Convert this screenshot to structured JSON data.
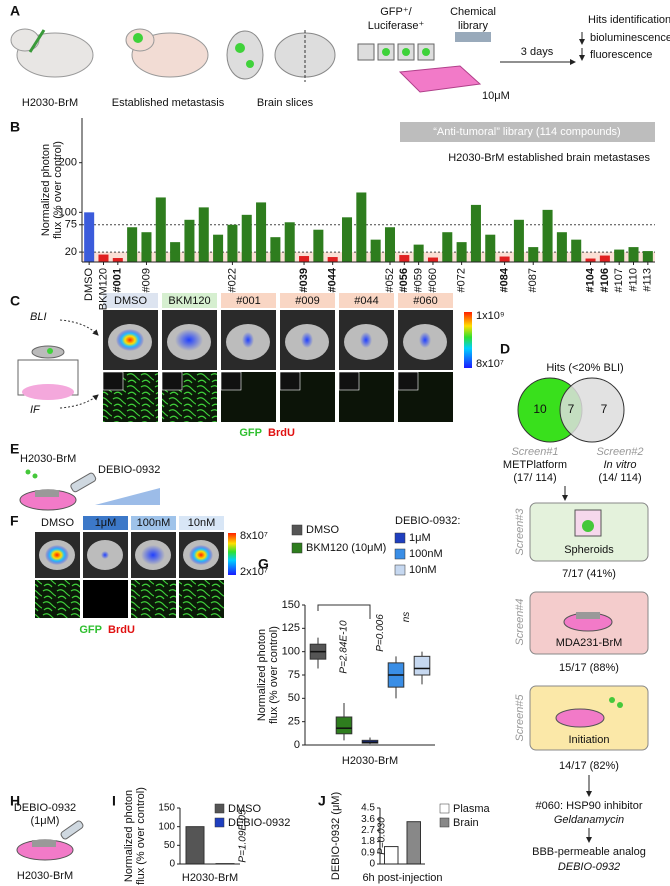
{
  "panel_labels": [
    "A",
    "B",
    "C",
    "D",
    "E",
    "F",
    "G",
    "H",
    "I",
    "J"
  ],
  "panel_a": {
    "mouse": "H2030-BrM",
    "metastasis": "Established metastasis",
    "slices": "Brain slices",
    "reporter": [
      "GFP⁺/",
      "Luciferase⁺"
    ],
    "library": [
      "Chemical",
      "library"
    ],
    "dose": "10μM",
    "time": "3 days",
    "hits": "Hits identification:",
    "readouts": [
      "bioluminescence",
      "fluorescence"
    ]
  },
  "panel_c": {
    "rows": [
      "BLI",
      "IF"
    ],
    "samples": [
      "DMSO",
      "BKM120",
      "#001",
      "#009",
      "#044",
      "#060"
    ],
    "colorbar": [
      "1x10⁹",
      "8x10⁷"
    ],
    "stains": [
      "GFP",
      "BrdU"
    ]
  },
  "panel_d": {
    "title": "Hits (<20% BLI)",
    "venn": [
      "10",
      "7",
      "7"
    ],
    "screen1": [
      "Screen#1",
      "METPlatform",
      "(17/ 114)"
    ],
    "screen2": [
      "Screen#2",
      "In vitro",
      "(14/ 114)"
    ],
    "screen3": [
      "Screen#3",
      "Spheroids",
      "7/17 (41%)"
    ],
    "screen4": [
      "Screen#4",
      "MDA231-BrM",
      "15/17 (88%)"
    ],
    "screen5": [
      "Screen#5",
      "Initiation",
      "14/17 (82%)"
    ],
    "result": [
      "#060: HSP90 inhibitor",
      "Geldanamycin",
      "BBB-permeable analog",
      "DEBIO-0932"
    ]
  },
  "panel_e": {
    "cells": "H2030-BrM",
    "drug": "DEBIO-0932"
  },
  "panel_f": {
    "samples": [
      "DMSO",
      "1μM",
      "100nM",
      "10nM"
    ],
    "colorbar": [
      "8x10⁷",
      "2x10⁷"
    ],
    "stains": [
      "GFP",
      "BrdU"
    ]
  },
  "panel_h": {
    "drug": [
      "DEBIO-0932",
      "(1μM)"
    ],
    "cells": "H2030-BrM"
  },
  "chart_data": [
    {
      "type": "bar",
      "ylabel": [
        "Normalized photon",
        "flux (% over control)"
      ],
      "annotations": [
        "“Anti-tumoral” library  (114 compounds)",
        "H2030-BrM established brain metastases"
      ],
      "categories": [
        "DMSO",
        "BKM120",
        "#001",
        null,
        "#009",
        null,
        null,
        null,
        null,
        null,
        "#022",
        null,
        null,
        null,
        null,
        "#039",
        null,
        "#044",
        null,
        null,
        null,
        "#052",
        "#056",
        "#059",
        "#060",
        null,
        "#072",
        null,
        null,
        "#084",
        null,
        "#087",
        null,
        null,
        null,
        "#104",
        "#106",
        "#107",
        "#110",
        "#113"
      ],
      "values": [
        100,
        15,
        8,
        70,
        60,
        130,
        40,
        85,
        110,
        55,
        75,
        95,
        120,
        50,
        80,
        12,
        65,
        10,
        90,
        140,
        45,
        70,
        14,
        35,
        9,
        60,
        40,
        115,
        55,
        11,
        85,
        30,
        105,
        60,
        45,
        7,
        13,
        25,
        30,
        22
      ],
      "bold_labels": [
        2,
        15,
        17,
        22,
        29,
        35,
        36
      ],
      "color": "#2e7d1e",
      "control_color": "#3b5bdb",
      "hit_color": "#e02020",
      "threshold": 20,
      "reference_lines": [
        20,
        75
      ],
      "ylim": [
        0,
        290
      ],
      "yticks": [
        20,
        75,
        100,
        200
      ]
    },
    {
      "type": "box",
      "ylabel": [
        "Normalized photon",
        "flux (% over control)"
      ],
      "xlabel": "H2030-BrM",
      "legend_title": "DEBIO-0932:",
      "annotations": [
        "P=2.84E-10",
        "P=0.006",
        "ns"
      ],
      "series": [
        {
          "name": "DMSO",
          "color": "#555555",
          "min": 82,
          "q1": 92,
          "median": 100,
          "q3": 108,
          "max": 115
        },
        {
          "name": "BKM120 (10μM)",
          "color": "#2e7d1e",
          "min": 5,
          "q1": 12,
          "median": 18,
          "q3": 30,
          "max": 45
        },
        {
          "name": "1μM",
          "color": "#1f3fbf",
          "min": 1,
          "q1": 2,
          "median": 3,
          "q3": 5,
          "max": 8
        },
        {
          "name": "100nM",
          "color": "#3a8ee6",
          "min": 50,
          "q1": 62,
          "median": 75,
          "q3": 88,
          "max": 95
        },
        {
          "name": "10nM",
          "color": "#c6d8f0",
          "min": 65,
          "q1": 75,
          "median": 82,
          "q3": 95,
          "max": 100
        }
      ],
      "ylim": [
        0,
        150
      ],
      "yticks": [
        0,
        25,
        50,
        75,
        100,
        125,
        150
      ]
    },
    {
      "type": "bar",
      "ylabel": [
        "Normalized photon",
        "flux (% over control)"
      ],
      "xlabel": "H2030-BrM",
      "annotations": [
        "P=1.09E-05"
      ],
      "categories": [
        "DMSO",
        "DEBIO-0932"
      ],
      "values": [
        100,
        1
      ],
      "colors": [
        "#555555",
        "#1f3fbf"
      ],
      "ylim": [
        0,
        150
      ],
      "yticks": [
        0,
        50,
        100,
        150
      ]
    },
    {
      "type": "bar",
      "ylabel": [
        "DEBIO-0932 (μM)"
      ],
      "xlabel": "6h post-injection",
      "annotations": [
        "P=0.030"
      ],
      "categories": [
        "Plasma",
        "Brain"
      ],
      "values": [
        1.4,
        3.4
      ],
      "colors": [
        "#ffffff",
        "#888888"
      ],
      "ylim": [
        0,
        4.5
      ],
      "yticks": [
        0,
        0.9,
        1.8,
        2.7,
        3.6,
        4.5
      ]
    }
  ]
}
